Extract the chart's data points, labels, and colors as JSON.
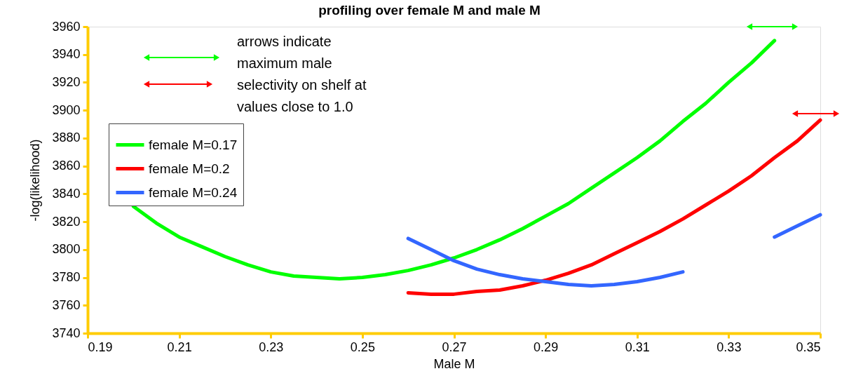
{
  "chart_data": {
    "type": "line",
    "title": "profiling over female M and male M",
    "xlabel": "Male M",
    "ylabel": "-log(likelihood)",
    "annotations": [
      "arrows indicate\nmaximum male\nselectivity on shelf at\nvalues close to 1.0"
    ],
    "xlim": [
      0.19,
      0.35
    ],
    "xticks": [
      0.19,
      0.21,
      0.23,
      0.25,
      0.27,
      0.29,
      0.31,
      0.33,
      0.35
    ],
    "ylim": [
      3740,
      3960
    ],
    "yticks": [
      3740,
      3760,
      3780,
      3800,
      3820,
      3840,
      3860,
      3880,
      3900,
      3920,
      3940,
      3960
    ],
    "grid": false,
    "legend": "left",
    "marker": "none",
    "line_style": "solid",
    "series": [
      {
        "name": "female M=0.17",
        "color": "#00ff00",
        "x": [
          0.2,
          0.205,
          0.21,
          0.215,
          0.22,
          0.225,
          0.23,
          0.235,
          0.24,
          0.245,
          0.25,
          0.255,
          0.26,
          0.265,
          0.27,
          0.275,
          0.28,
          0.285,
          0.29,
          0.295,
          0.3,
          0.305,
          0.31,
          0.315,
          0.32,
          0.325,
          0.33,
          0.335,
          0.34
        ],
        "values": [
          3831,
          3819,
          3809,
          3802,
          3795,
          3789,
          3784,
          3781,
          3780,
          3779,
          3780,
          3782,
          3785,
          3789,
          3794,
          3800,
          3807,
          3815,
          3824,
          3833,
          3844,
          3855,
          3866,
          3878,
          3892,
          3905,
          3920,
          3934,
          3950
        ]
      },
      {
        "name": "female M=0.2",
        "color": "#ff0000",
        "x": [
          0.26,
          0.265,
          0.27,
          0.275,
          0.28,
          0.285,
          0.29,
          0.295,
          0.3,
          0.305,
          0.31,
          0.315,
          0.32,
          0.325,
          0.33,
          0.335,
          0.34,
          0.345,
          0.35
        ],
        "values": [
          3769,
          3768,
          3768,
          3770,
          3771,
          3774,
          3778,
          3783,
          3789,
          3797,
          3805,
          3813,
          3822,
          3832,
          3842,
          3853,
          3866,
          3878,
          3893
        ]
      },
      {
        "name": "female M=0.24",
        "color": "#3366ff",
        "x": [
          0.26,
          0.265,
          0.27,
          0.275,
          0.28,
          0.285,
          0.29,
          0.295,
          0.3,
          0.305,
          0.31,
          0.315,
          0.32,
          0.325,
          0.33,
          0.335,
          0.34,
          0.345,
          0.35
        ],
        "values": [
          3808,
          3800,
          3792,
          3786,
          3782,
          3779,
          3777,
          3775,
          3774,
          3775,
          3777,
          3780,
          3784,
          null,
          null,
          null,
          3809,
          3817,
          3825
        ]
      }
    ]
  }
}
